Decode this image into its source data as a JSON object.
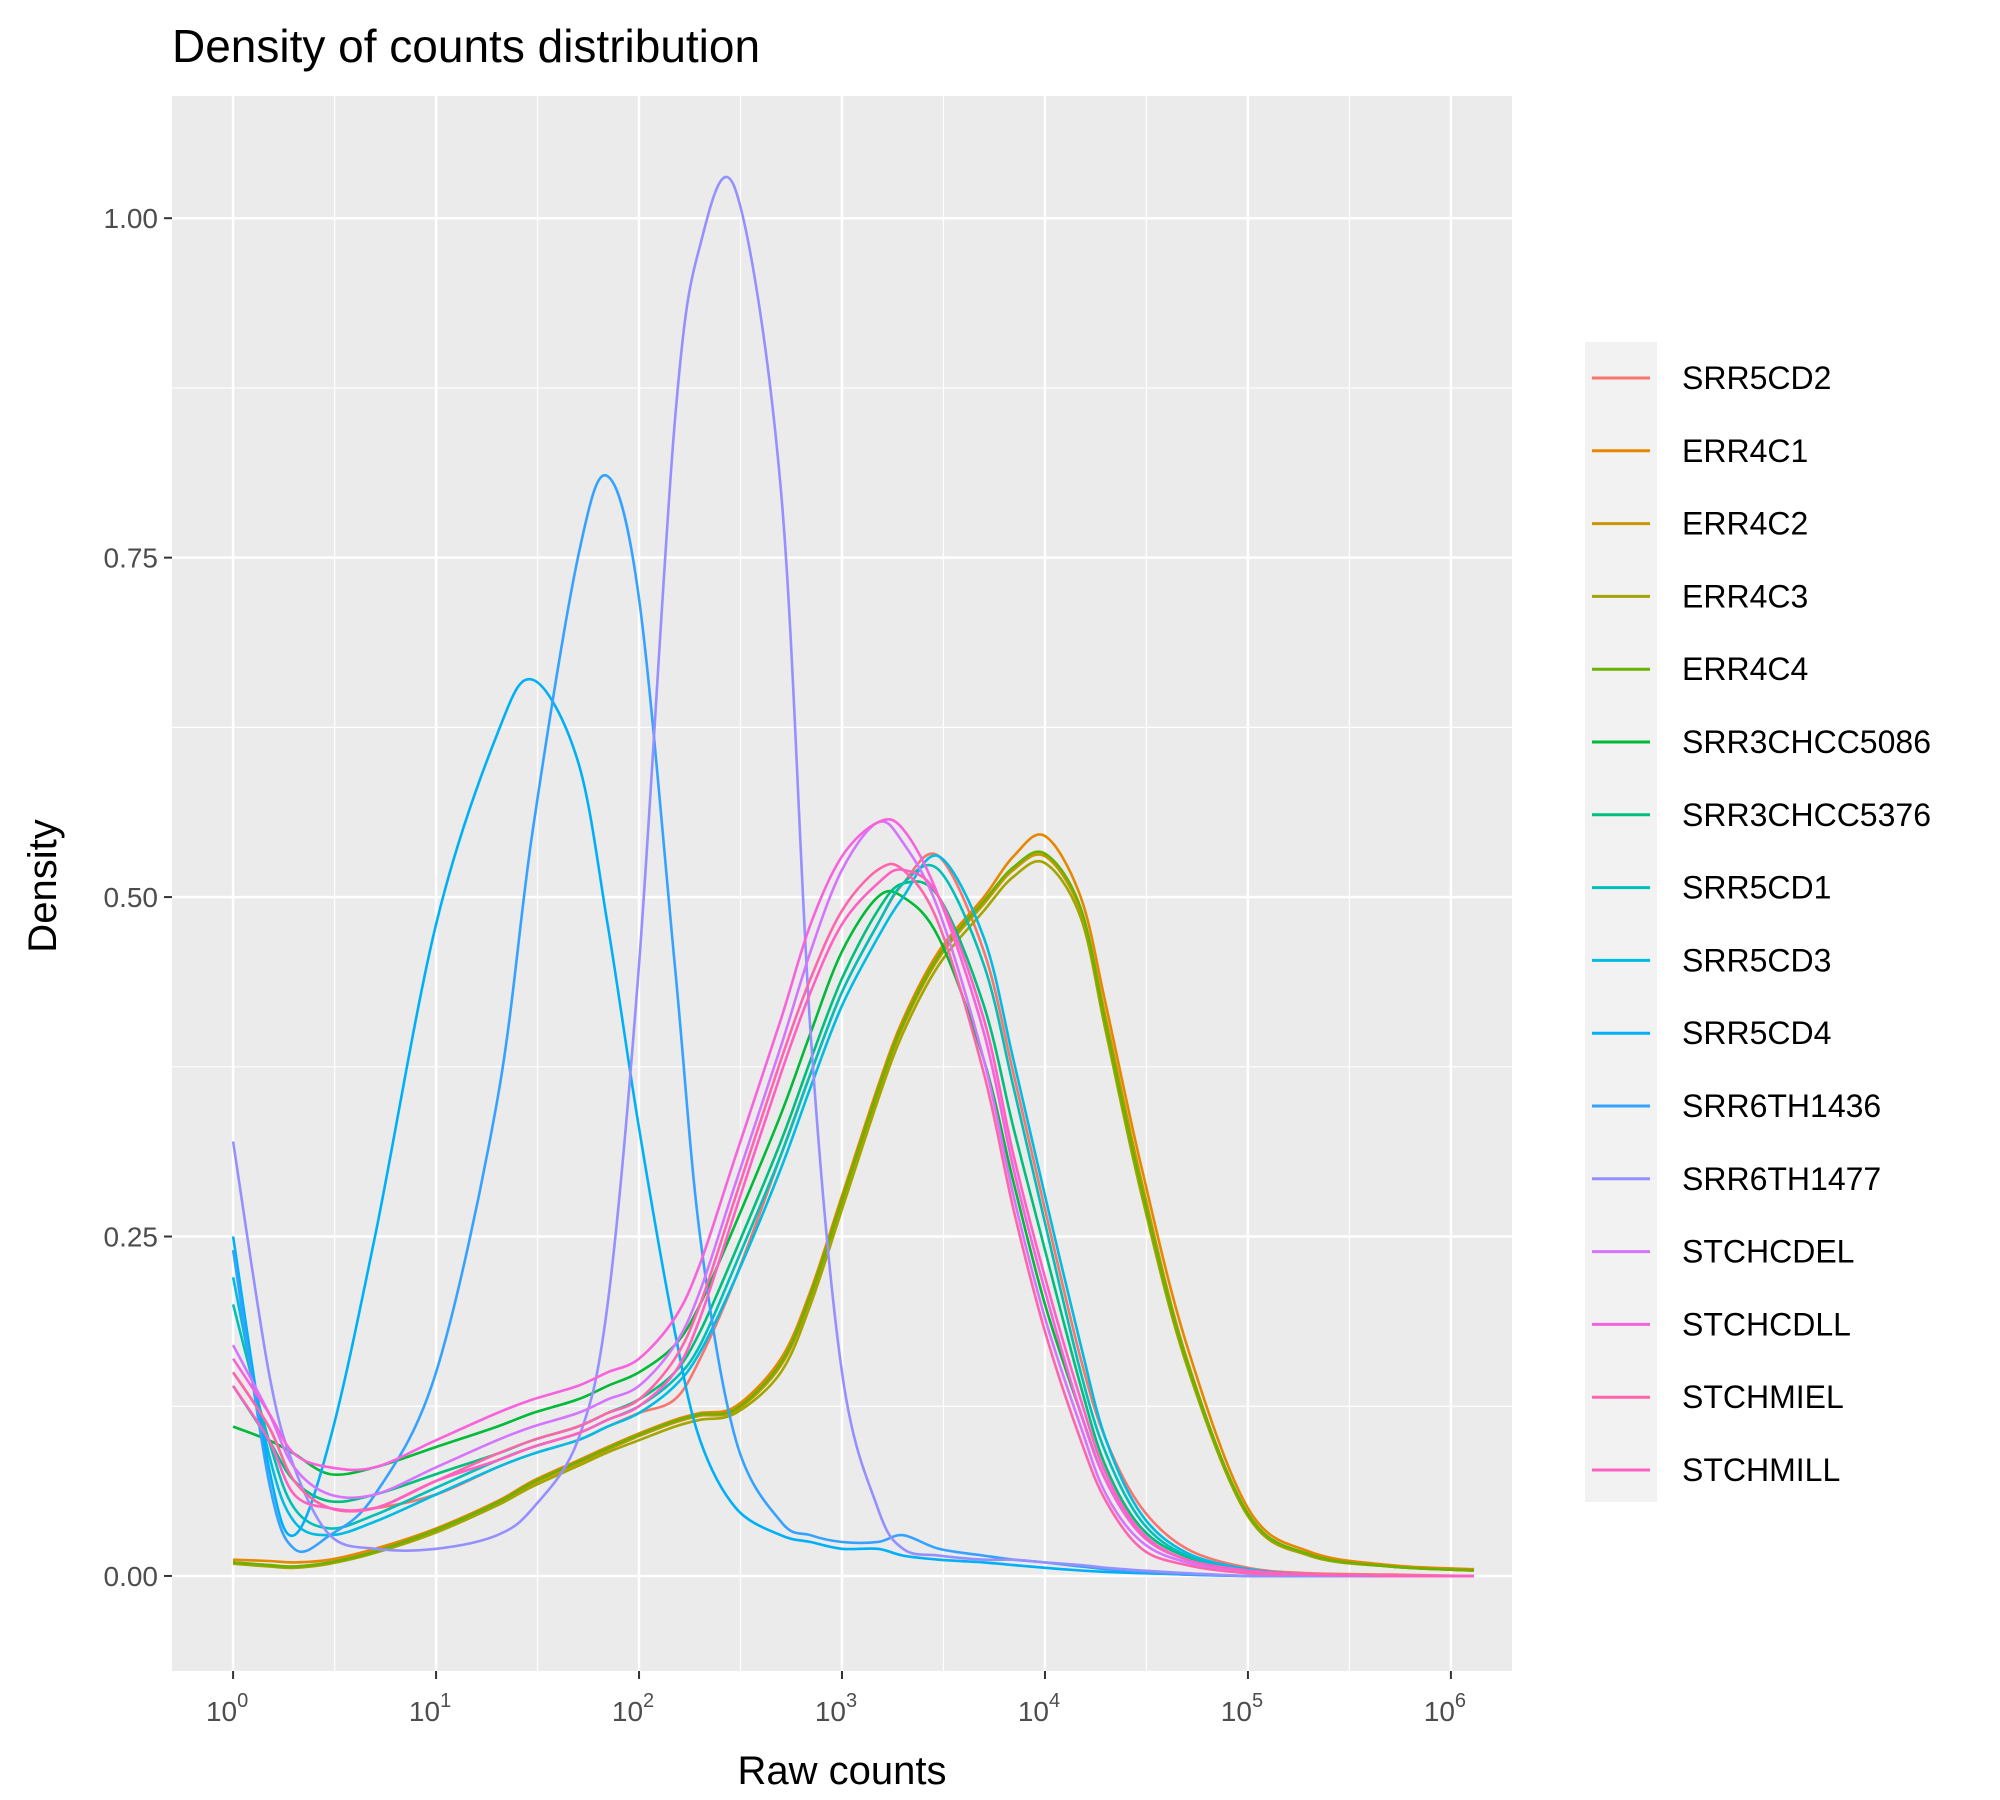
{
  "chart_data": {
    "type": "line",
    "title": "Density of counts distribution",
    "xlabel": "Raw counts",
    "ylabel": "Density",
    "x_scale": "log10",
    "xlim": [
      0.5,
      2000000
    ],
    "ylim": [
      -0.07,
      1.09
    ],
    "x_ticks": [
      {
        "value": 1,
        "base": "10",
        "exp": "0"
      },
      {
        "value": 10,
        "base": "10",
        "exp": "1"
      },
      {
        "value": 100,
        "base": "10",
        "exp": "2"
      },
      {
        "value": 1000,
        "base": "10",
        "exp": "3"
      },
      {
        "value": 10000,
        "base": "10",
        "exp": "4"
      },
      {
        "value": 100000,
        "base": "10",
        "exp": "5"
      },
      {
        "value": 1000000,
        "base": "10",
        "exp": "6"
      }
    ],
    "y_ticks": [
      {
        "value": 0,
        "label": "0.00"
      },
      {
        "value": 0.25,
        "label": "0.25"
      },
      {
        "value": 0.5,
        "label": "0.50"
      },
      {
        "value": 0.75,
        "label": "0.75"
      },
      {
        "value": 1.0,
        "label": "1.00"
      }
    ],
    "grid": true,
    "legend_position": "right",
    "x": [
      1,
      1.5,
      2,
      3,
      5,
      10,
      20,
      30,
      50,
      70,
      100,
      150,
      200,
      300,
      500,
      700,
      1000,
      1500,
      2000,
      3000,
      5000,
      7000,
      10000,
      15000,
      20000,
      30000,
      50000,
      100000,
      200000,
      500000,
      1300000
    ],
    "series": [
      {
        "name": "SRR5CD2",
        "color": "#F8766D",
        "values": [
          0.15,
          0.11,
          0.07,
          0.05,
          0.05,
          0.06,
          0.08,
          0.09,
          0.1,
          0.11,
          0.12,
          0.13,
          0.16,
          0.22,
          0.31,
          0.37,
          0.43,
          0.48,
          0.51,
          0.53,
          0.46,
          0.37,
          0.27,
          0.16,
          0.1,
          0.05,
          0.02,
          0.006,
          0.002,
          0.001,
          0.0
        ]
      },
      {
        "name": "ERR4C1",
        "color": "#E58700",
        "values": [
          0.012,
          0.011,
          0.01,
          0.012,
          0.02,
          0.035,
          0.055,
          0.07,
          0.085,
          0.095,
          0.105,
          0.115,
          0.12,
          0.125,
          0.16,
          0.21,
          0.28,
          0.36,
          0.41,
          0.46,
          0.5,
          0.53,
          0.545,
          0.5,
          0.42,
          0.3,
          0.17,
          0.05,
          0.018,
          0.008,
          0.005
        ]
      },
      {
        "name": "ERR4C2",
        "color": "#C99800",
        "values": [
          0.01,
          0.008,
          0.007,
          0.01,
          0.018,
          0.033,
          0.053,
          0.068,
          0.083,
          0.093,
          0.103,
          0.113,
          0.118,
          0.122,
          0.155,
          0.205,
          0.275,
          0.355,
          0.405,
          0.455,
          0.495,
          0.52,
          0.53,
          0.49,
          0.41,
          0.29,
          0.16,
          0.045,
          0.016,
          0.007,
          0.004
        ]
      },
      {
        "name": "ERR4C3",
        "color": "#A3A500",
        "values": [
          0.009,
          0.007,
          0.006,
          0.009,
          0.017,
          0.032,
          0.052,
          0.066,
          0.081,
          0.091,
          0.1,
          0.11,
          0.115,
          0.12,
          0.15,
          0.2,
          0.27,
          0.35,
          0.4,
          0.45,
          0.49,
          0.515,
          0.525,
          0.485,
          0.4,
          0.28,
          0.155,
          0.044,
          0.015,
          0.007,
          0.004
        ]
      },
      {
        "name": "ERR4C4",
        "color": "#6BB100",
        "values": [
          0.01,
          0.008,
          0.007,
          0.01,
          0.018,
          0.034,
          0.054,
          0.069,
          0.084,
          0.094,
          0.104,
          0.114,
          0.119,
          0.123,
          0.157,
          0.207,
          0.277,
          0.357,
          0.407,
          0.457,
          0.497,
          0.522,
          0.532,
          0.492,
          0.405,
          0.285,
          0.158,
          0.046,
          0.016,
          0.007,
          0.004
        ]
      },
      {
        "name": "SRR3CHCC5086",
        "color": "#00BA38",
        "values": [
          0.11,
          0.1,
          0.09,
          0.075,
          0.08,
          0.095,
          0.11,
          0.12,
          0.13,
          0.14,
          0.15,
          0.17,
          0.2,
          0.26,
          0.34,
          0.4,
          0.46,
          0.5,
          0.5,
          0.47,
          0.38,
          0.29,
          0.2,
          0.12,
          0.07,
          0.03,
          0.012,
          0.004,
          0.001,
          0.0,
          0.0
        ]
      },
      {
        "name": "SRR3CHCC5376",
        "color": "#00BF7D",
        "values": [
          0.14,
          0.1,
          0.07,
          0.055,
          0.06,
          0.075,
          0.09,
          0.1,
          0.11,
          0.12,
          0.13,
          0.15,
          0.18,
          0.24,
          0.32,
          0.38,
          0.44,
          0.49,
          0.51,
          0.5,
          0.42,
          0.33,
          0.24,
          0.14,
          0.08,
          0.035,
          0.014,
          0.004,
          0.001,
          0.0,
          0.0
        ]
      },
      {
        "name": "SRR5CD1",
        "color": "#00C0B8",
        "values": [
          0.2,
          0.1,
          0.05,
          0.035,
          0.045,
          0.065,
          0.085,
          0.095,
          0.105,
          0.115,
          0.125,
          0.145,
          0.17,
          0.23,
          0.31,
          0.37,
          0.43,
          0.48,
          0.51,
          0.52,
          0.45,
          0.36,
          0.26,
          0.15,
          0.09,
          0.04,
          0.015,
          0.005,
          0.001,
          0.0,
          0.0
        ]
      },
      {
        "name": "SRR5CD3",
        "color": "#00BCE3",
        "values": [
          0.22,
          0.09,
          0.04,
          0.03,
          0.04,
          0.06,
          0.08,
          0.09,
          0.1,
          0.11,
          0.12,
          0.14,
          0.165,
          0.22,
          0.3,
          0.36,
          0.42,
          0.47,
          0.5,
          0.53,
          0.47,
          0.38,
          0.28,
          0.17,
          0.1,
          0.045,
          0.017,
          0.005,
          0.001,
          0.0,
          0.0
        ]
      },
      {
        "name": "SRR5CD4",
        "color": "#00B0F6",
        "values": [
          0.25,
          0.08,
          0.03,
          0.1,
          0.25,
          0.48,
          0.62,
          0.66,
          0.6,
          0.48,
          0.33,
          0.18,
          0.1,
          0.05,
          0.03,
          0.025,
          0.02,
          0.02,
          0.015,
          0.012,
          0.01,
          0.008,
          0.006,
          0.004,
          0.003,
          0.002,
          0.001,
          0.0,
          0.0,
          0.0,
          0.0
        ]
      },
      {
        "name": "SRR6TH1436",
        "color": "#35A2FF",
        "values": [
          0.24,
          0.07,
          0.02,
          0.03,
          0.06,
          0.15,
          0.35,
          0.55,
          0.75,
          0.81,
          0.72,
          0.45,
          0.25,
          0.1,
          0.04,
          0.03,
          0.025,
          0.025,
          0.03,
          0.02,
          0.015,
          0.012,
          0.01,
          0.007,
          0.005,
          0.003,
          0.001,
          0.0,
          0.0,
          0.0,
          0.0
        ]
      },
      {
        "name": "SRR6TH1477",
        "color": "#9590FF",
        "values": [
          0.32,
          0.15,
          0.08,
          0.03,
          0.02,
          0.02,
          0.03,
          0.05,
          0.1,
          0.2,
          0.45,
          0.85,
          0.98,
          1.02,
          0.8,
          0.4,
          0.15,
          0.05,
          0.02,
          0.015,
          0.012,
          0.012,
          0.01,
          0.008,
          0.006,
          0.004,
          0.002,
          0.0,
          0.0,
          0.0,
          0.0
        ]
      },
      {
        "name": "STCHCDEL",
        "color": "#D575FE",
        "values": [
          0.17,
          0.12,
          0.08,
          0.06,
          0.06,
          0.08,
          0.1,
          0.11,
          0.12,
          0.13,
          0.14,
          0.17,
          0.21,
          0.29,
          0.39,
          0.46,
          0.52,
          0.555,
          0.54,
          0.49,
          0.38,
          0.28,
          0.19,
          0.11,
          0.06,
          0.025,
          0.01,
          0.003,
          0.001,
          0.0,
          0.0
        ]
      },
      {
        "name": "STCHCDLL",
        "color": "#F962DD",
        "values": [
          0.16,
          0.12,
          0.09,
          0.08,
          0.08,
          0.1,
          0.12,
          0.13,
          0.14,
          0.15,
          0.16,
          0.19,
          0.23,
          0.31,
          0.41,
          0.48,
          0.53,
          0.555,
          0.55,
          0.5,
          0.4,
          0.3,
          0.21,
          0.12,
          0.07,
          0.03,
          0.012,
          0.004,
          0.001,
          0.0,
          0.0
        ]
      },
      {
        "name": "STCHMIEL",
        "color": "#FF65AC",
        "values": [
          0.15,
          0.11,
          0.07,
          0.05,
          0.05,
          0.07,
          0.09,
          0.1,
          0.11,
          0.12,
          0.13,
          0.16,
          0.2,
          0.28,
          0.38,
          0.44,
          0.49,
          0.52,
          0.52,
          0.48,
          0.37,
          0.27,
          0.18,
          0.1,
          0.055,
          0.02,
          0.008,
          0.002,
          0.001,
          0.0,
          0.0
        ]
      },
      {
        "name": "STCHMILL",
        "color": "#FF61C3",
        "values": [
          0.14,
          0.1,
          0.06,
          0.05,
          0.05,
          0.07,
          0.085,
          0.095,
          0.105,
          0.115,
          0.125,
          0.15,
          0.19,
          0.27,
          0.37,
          0.43,
          0.48,
          0.51,
          0.52,
          0.5,
          0.41,
          0.31,
          0.22,
          0.13,
          0.075,
          0.032,
          0.012,
          0.004,
          0.001,
          0.0,
          0.0
        ]
      }
    ]
  }
}
